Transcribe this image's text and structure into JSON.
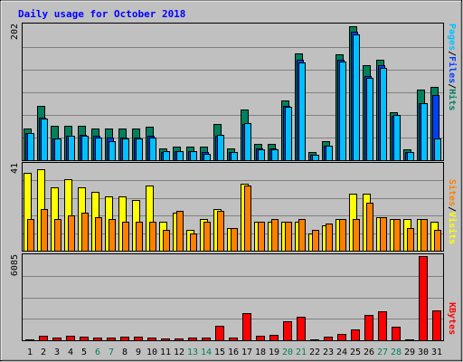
{
  "title": "Daily usage for October 2018",
  "legend": {
    "pages": "Pages",
    "files": "Files",
    "hits": "Hits",
    "sites": "Sites",
    "visits": "Visits",
    "kbytes": "KBytes",
    "sep": "/"
  },
  "colors": {
    "background": "#c0c0c0",
    "panel": "#c0c0c0",
    "title": "#0000ff",
    "hits": "#00805c",
    "files": "#0040ff",
    "pages": "#00c0ff",
    "visits": "#ffff00",
    "sites": "#ff8000",
    "kbytes": "#ff0000",
    "weekend": "#00805c",
    "weekday": "#000000"
  },
  "chart_data": [
    {
      "type": "bar",
      "panel": "hits-files-pages",
      "ymax_label": "202",
      "ylim": [
        0,
        202
      ],
      "categories": [
        "1",
        "2",
        "3",
        "4",
        "5",
        "6",
        "7",
        "8",
        "9",
        "10",
        "11",
        "12",
        "13",
        "14",
        "15",
        "16",
        "17",
        "18",
        "19",
        "20",
        "21",
        "22",
        "23",
        "24",
        "25",
        "26",
        "27",
        "28",
        "29",
        "30",
        "31"
      ],
      "weekend_days": [
        "6",
        "7",
        "13",
        "14",
        "20",
        "21",
        "27",
        "28"
      ],
      "series": [
        {
          "name": "Hits",
          "values": [
            48,
            82,
            52,
            52,
            52,
            48,
            48,
            48,
            48,
            50,
            18,
            20,
            20,
            20,
            54,
            18,
            76,
            24,
            24,
            90,
            160,
            12,
            28,
            158,
            200,
            142,
            150,
            72,
            16,
            106,
            110
          ]
        },
        {
          "name": "Files",
          "values": [
            40,
            64,
            32,
            36,
            38,
            36,
            34,
            34,
            34,
            36,
            12,
            14,
            14,
            12,
            36,
            12,
            54,
            18,
            18,
            82,
            150,
            8,
            22,
            150,
            192,
            126,
            142,
            66,
            12,
            86,
            98
          ]
        },
        {
          "name": "Pages",
          "values": [
            40,
            62,
            32,
            36,
            36,
            34,
            28,
            32,
            32,
            34,
            14,
            14,
            14,
            10,
            38,
            12,
            56,
            16,
            16,
            80,
            146,
            8,
            22,
            148,
            188,
            124,
            138,
            68,
            12,
            86,
            32
          ]
        }
      ]
    },
    {
      "type": "bar",
      "panel": "visits-sites",
      "ymax_label": "41",
      "ylim": [
        0,
        41
      ],
      "categories": [
        "1",
        "2",
        "3",
        "4",
        "5",
        "6",
        "7",
        "8",
        "9",
        "10",
        "11",
        "12",
        "13",
        "14",
        "15",
        "16",
        "17",
        "18",
        "19",
        "20",
        "21",
        "22",
        "23",
        "24",
        "25",
        "26",
        "27",
        "28",
        "29",
        "30",
        "31"
      ],
      "series": [
        {
          "name": "Visits",
          "values": [
            37,
            39,
            30,
            34,
            30,
            28,
            26,
            26,
            24,
            31,
            14,
            18,
            10,
            15,
            20,
            11,
            32,
            14,
            14,
            14,
            14,
            8,
            12,
            15,
            27,
            27,
            16,
            15,
            15,
            15,
            14
          ]
        },
        {
          "name": "Sites",
          "values": [
            15,
            20,
            15,
            17,
            18,
            16,
            15,
            14,
            14,
            14,
            10,
            19,
            8,
            14,
            19,
            11,
            31,
            14,
            15,
            14,
            15,
            10,
            13,
            15,
            15,
            23,
            16,
            15,
            11,
            15,
            10
          ]
        }
      ]
    },
    {
      "type": "bar",
      "panel": "kbytes",
      "ymax_label": "6085",
      "ylim": [
        0,
        6085
      ],
      "categories": [
        "1",
        "2",
        "3",
        "4",
        "5",
        "6",
        "7",
        "8",
        "9",
        "10",
        "11",
        "12",
        "13",
        "14",
        "15",
        "16",
        "17",
        "18",
        "19",
        "20",
        "21",
        "22",
        "23",
        "24",
        "25",
        "26",
        "27",
        "28",
        "29",
        "30",
        "31"
      ],
      "series": [
        {
          "name": "KBytes",
          "values": [
            80,
            300,
            200,
            300,
            240,
            200,
            200,
            240,
            230,
            220,
            100,
            160,
            200,
            200,
            1060,
            200,
            1950,
            300,
            400,
            1400,
            1700,
            70,
            240,
            450,
            800,
            1800,
            2100,
            950,
            80,
            6085,
            2150
          ]
        }
      ]
    }
  ]
}
